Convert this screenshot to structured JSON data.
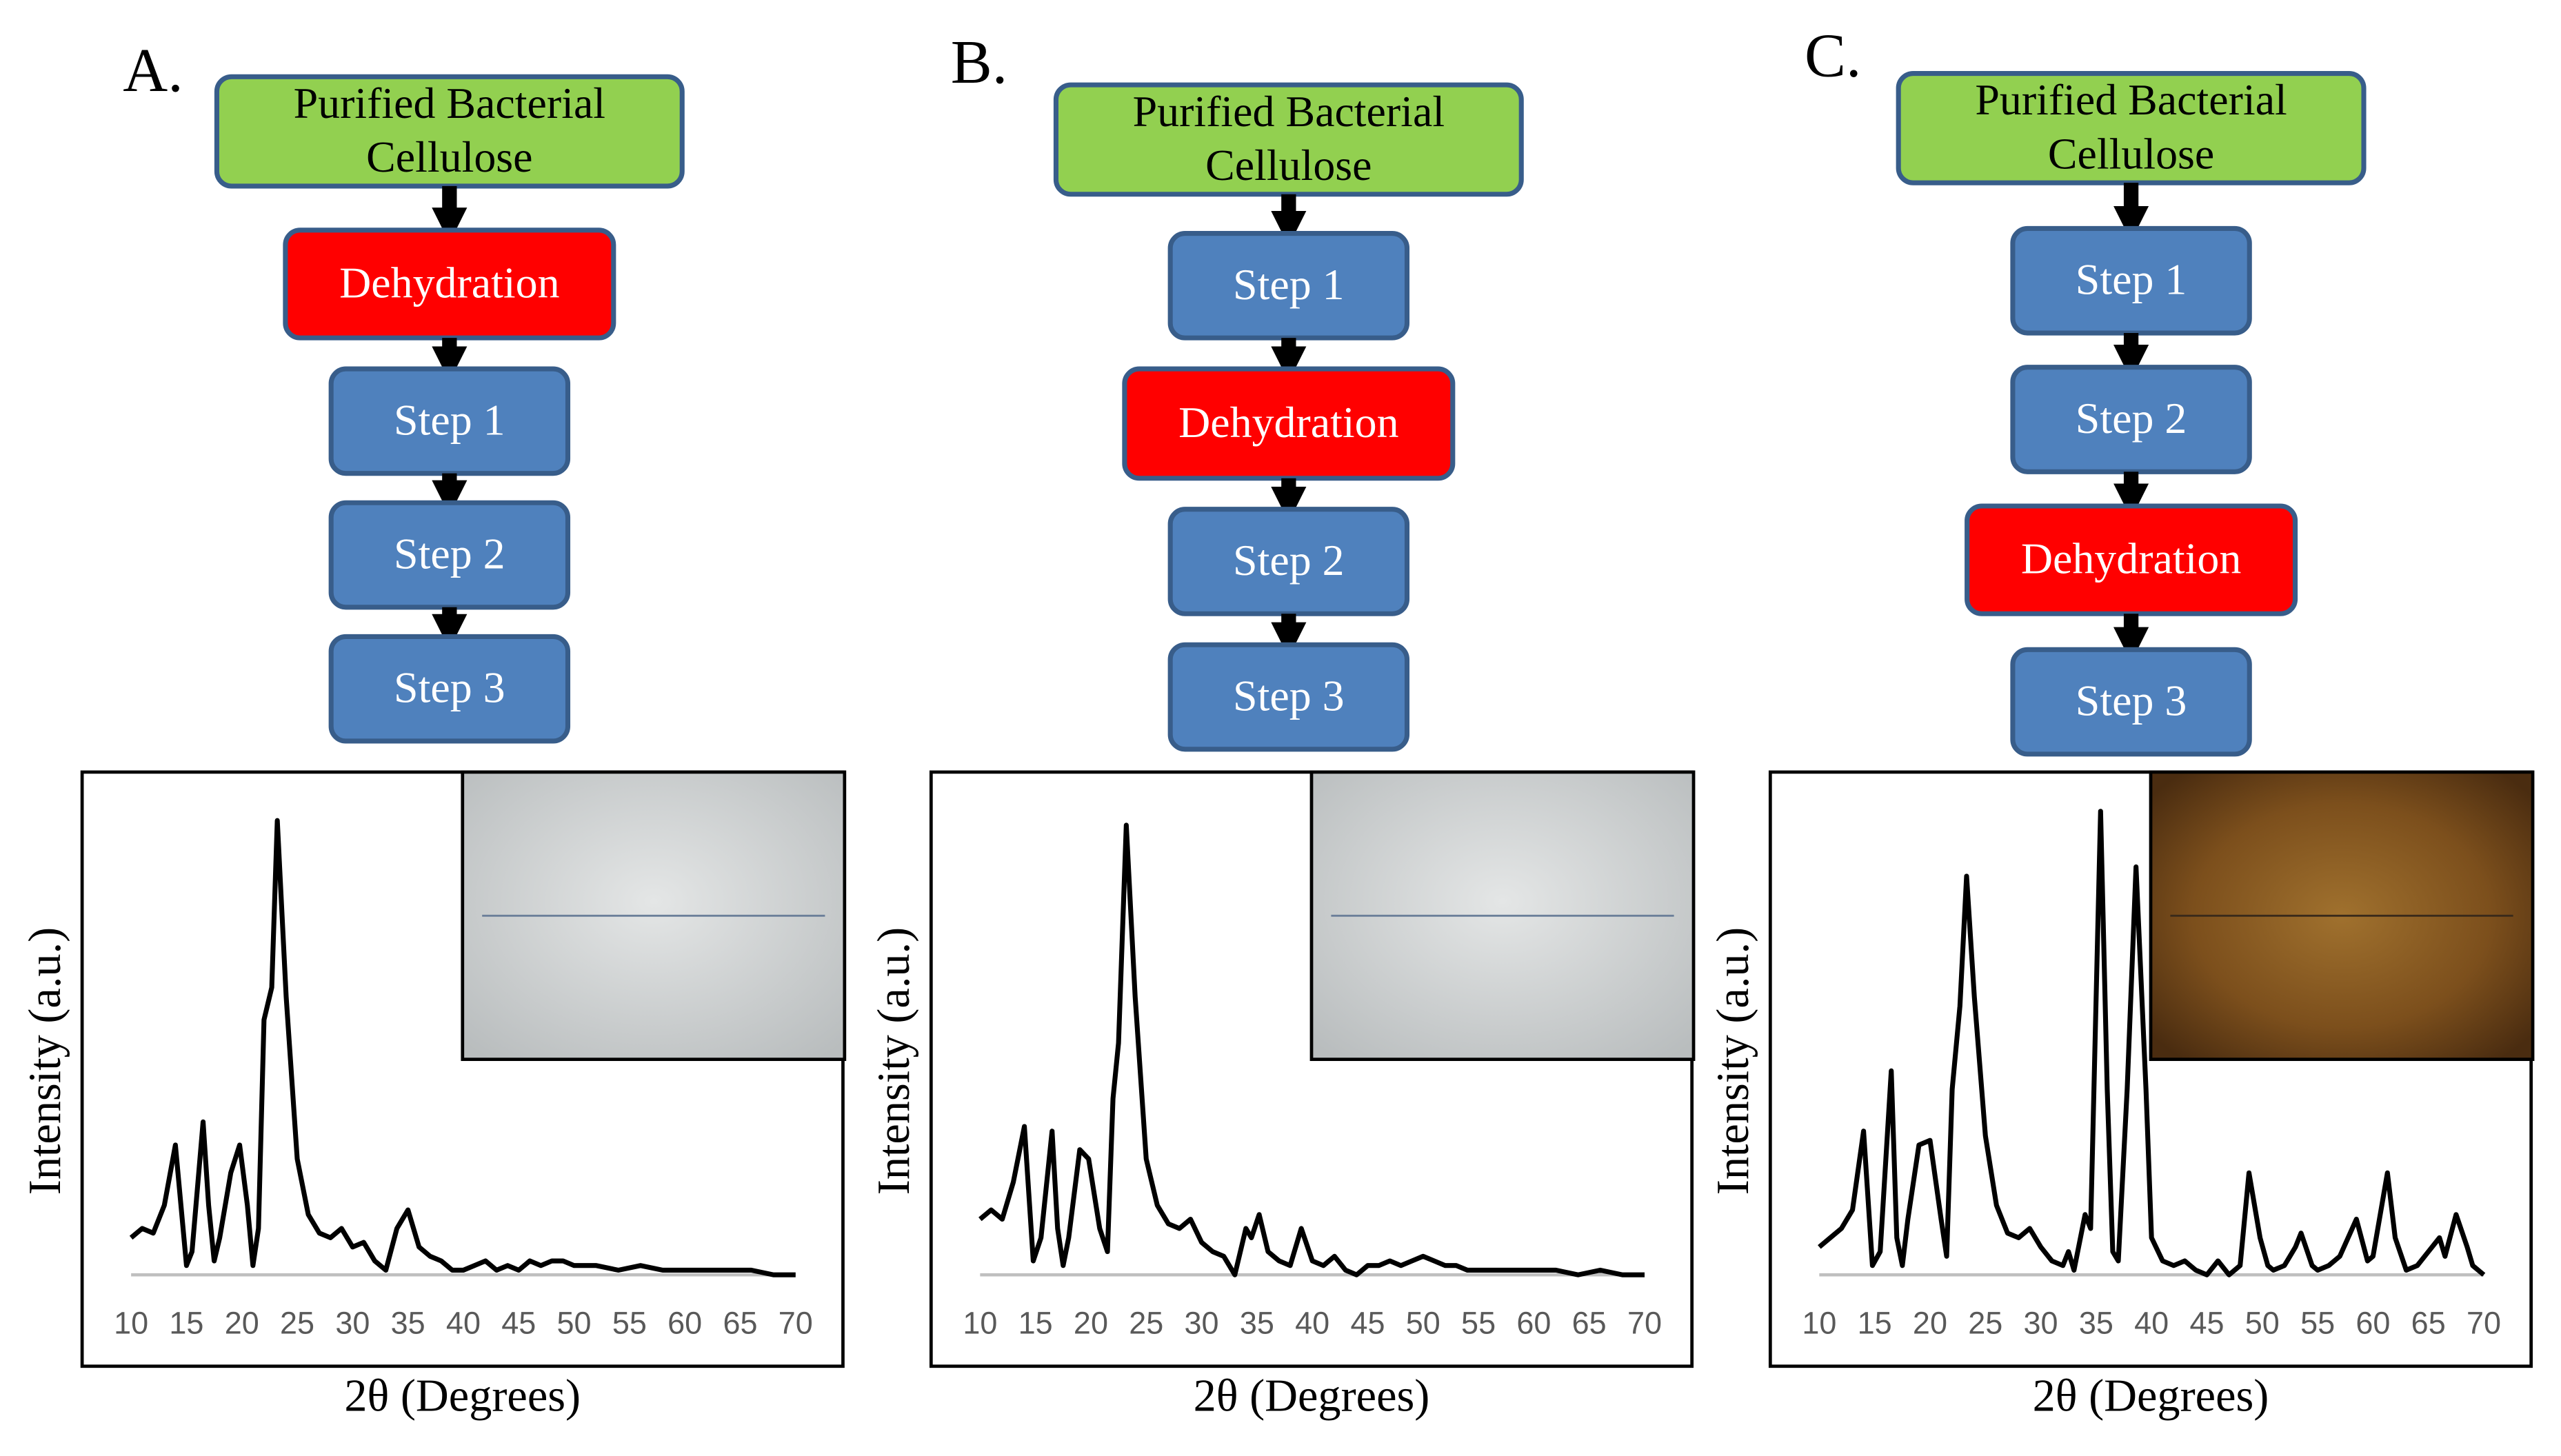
{
  "panels": [
    {
      "label": "A.",
      "nodes": [
        {
          "lines": [
            "Purified Bacterial",
            "Cellulose"
          ],
          "color": "#92d050"
        },
        {
          "lines": [
            "Dehydration"
          ],
          "color": "#ff0000"
        },
        {
          "lines": [
            "Step 1"
          ],
          "color": "#4f81bd"
        },
        {
          "lines": [
            "Step 2"
          ],
          "color": "#4f81bd"
        },
        {
          "lines": [
            "Step 3"
          ],
          "color": "#4f81bd"
        }
      ]
    },
    {
      "label": "B.",
      "nodes": [
        {
          "lines": [
            "Purified Bacterial",
            "Cellulose"
          ],
          "color": "#92d050"
        },
        {
          "lines": [
            "Step 1"
          ],
          "color": "#4f81bd"
        },
        {
          "lines": [
            "Dehydration"
          ],
          "color": "#ff0000"
        },
        {
          "lines": [
            "Step 2"
          ],
          "color": "#4f81bd"
        },
        {
          "lines": [
            "Step 3"
          ],
          "color": "#4f81bd"
        }
      ]
    },
    {
      "label": "C.",
      "nodes": [
        {
          "lines": [
            "Purified Bacterial",
            "Cellulose"
          ],
          "color": "#92d050"
        },
        {
          "lines": [
            "Step 1"
          ],
          "color": "#4f81bd"
        },
        {
          "lines": [
            "Step 2"
          ],
          "color": "#4f81bd"
        },
        {
          "lines": [
            "Dehydration"
          ],
          "color": "#ff0000"
        },
        {
          "lines": [
            "Step 3"
          ],
          "color": "#4f81bd"
        }
      ]
    }
  ],
  "chart_data": [
    {
      "type": "line",
      "xlabel": "2θ (Degrees)",
      "ylabel": "Intensity (a.u.)",
      "xlim": [
        10,
        70
      ],
      "xticks": [
        10,
        15,
        20,
        25,
        30,
        35,
        40,
        45,
        50,
        55,
        60,
        65,
        70
      ],
      "ylim": [
        0,
        100
      ],
      "color": "#000000",
      "x": [
        10,
        11,
        12,
        13,
        14,
        15,
        15.5,
        16.5,
        17,
        17.5,
        18,
        19,
        19.8,
        20.5,
        21,
        21.5,
        22,
        22.7,
        23.2,
        24,
        25,
        26,
        27,
        28,
        29,
        30,
        31,
        32,
        33,
        34,
        35,
        36,
        37,
        38,
        39,
        40,
        41,
        42,
        43,
        44,
        45,
        46,
        47,
        48,
        49,
        50,
        52,
        54,
        56,
        58,
        60,
        62,
        64,
        66,
        68,
        70
      ],
      "values": [
        8,
        10,
        9,
        15,
        28,
        2,
        5,
        33,
        15,
        3,
        8,
        22,
        28,
        15,
        2,
        10,
        55,
        62,
        98,
        60,
        25,
        13,
        9,
        8,
        10,
        6,
        7,
        3,
        1,
        10,
        14,
        6,
        4,
        3,
        1,
        1,
        2,
        3,
        1,
        2,
        1,
        3,
        2,
        3,
        3,
        2,
        2,
        1,
        2,
        1,
        1,
        1,
        1,
        1,
        0,
        0
      ]
    },
    {
      "type": "line",
      "xlabel": "2θ (Degrees)",
      "ylabel": "Intensity (a.u.)",
      "xlim": [
        10,
        70
      ],
      "xticks": [
        10,
        15,
        20,
        25,
        30,
        35,
        40,
        45,
        50,
        55,
        60,
        65,
        70
      ],
      "ylim": [
        0,
        100
      ],
      "color": "#000000",
      "x": [
        10,
        11,
        12,
        13,
        14,
        14.8,
        15.5,
        16.5,
        17,
        17.5,
        18,
        19,
        19.8,
        20.8,
        21.5,
        22,
        22.5,
        23.2,
        24,
        25,
        26,
        27,
        28,
        29,
        30,
        31,
        32,
        33,
        34,
        34.5,
        35.2,
        36,
        37,
        38,
        39,
        40,
        41,
        42,
        43,
        44,
        45,
        46,
        47,
        48,
        49,
        50,
        51,
        52,
        53,
        54,
        56,
        58,
        60,
        62,
        64,
        66,
        68,
        70
      ],
      "values": [
        12,
        14,
        12,
        20,
        32,
        3,
        8,
        31,
        10,
        2,
        8,
        27,
        25,
        10,
        5,
        38,
        50,
        97,
        60,
        25,
        15,
        11,
        10,
        12,
        7,
        5,
        4,
        0,
        10,
        8,
        13,
        5,
        3,
        2,
        10,
        3,
        2,
        4,
        1,
        0,
        2,
        2,
        3,
        2,
        3,
        4,
        3,
        2,
        2,
        1,
        1,
        1,
        1,
        1,
        0,
        1,
        0,
        0
      ]
    },
    {
      "type": "line",
      "xlabel": "2θ (Degrees)",
      "ylabel": "Intensity (a.u.)",
      "xlim": [
        10,
        70
      ],
      "xticks": [
        10,
        15,
        20,
        25,
        30,
        35,
        40,
        45,
        50,
        55,
        60,
        65,
        70
      ],
      "ylim": [
        0,
        100
      ],
      "color": "#000000",
      "x": [
        10,
        11,
        12,
        13,
        14,
        14.8,
        15.5,
        16.5,
        17,
        17.5,
        18,
        19,
        20,
        21,
        21.5,
        22,
        22.7,
        23.3,
        24,
        25,
        26,
        27,
        28,
        29,
        30,
        31,
        32,
        32.5,
        33,
        34,
        34.5,
        35.4,
        36,
        36.5,
        37,
        37.8,
        38.6,
        39.5,
        40,
        41,
        42,
        43,
        44,
        45,
        46,
        47,
        48,
        48.8,
        49.8,
        50.5,
        51,
        52,
        53,
        53.5,
        54.5,
        55,
        56,
        57,
        58.5,
        59.5,
        60,
        61.3,
        62,
        63,
        64,
        65,
        66,
        66.5,
        67.5,
        68.5,
        69,
        70
      ],
      "values": [
        6,
        8,
        10,
        14,
        31,
        2,
        5,
        44,
        8,
        2,
        12,
        28,
        29,
        12,
        4,
        40,
        58,
        86,
        60,
        30,
        15,
        9,
        8,
        10,
        6,
        3,
        2,
        5,
        1,
        13,
        10,
        100,
        40,
        5,
        3,
        40,
        88,
        40,
        8,
        3,
        2,
        3,
        1,
        0,
        3,
        0,
        2,
        22,
        8,
        2,
        1,
        2,
        6,
        9,
        2,
        1,
        2,
        4,
        12,
        3,
        4,
        22,
        8,
        1,
        2,
        5,
        8,
        4,
        13,
        6,
        2,
        0
      ]
    }
  ]
}
